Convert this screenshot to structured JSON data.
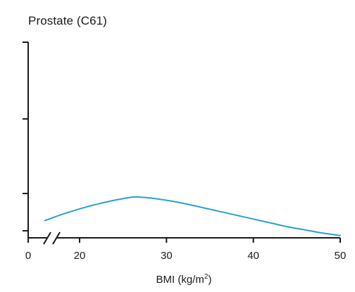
{
  "chart_data": {
    "type": "line",
    "title": "Prostate (C61)",
    "xlabel": {
      "main": "BMI (kg/m",
      "sup": "2",
      "end": ")"
    },
    "ylabel": "",
    "x_tick_labels": [
      "0",
      "20",
      "30",
      "40",
      "50"
    ],
    "x_axis_break": true,
    "y_tick_labels": [],
    "xlim": [
      15,
      50
    ],
    "grid": false,
    "legend": "none",
    "series": [
      {
        "color": "#2a9fd0",
        "x": [
          16,
          18,
          20,
          22,
          24,
          26,
          27,
          28,
          30,
          32,
          34,
          36,
          38,
          40,
          42,
          44,
          46,
          48,
          50
        ],
        "y": [
          0.22,
          0.3,
          0.37,
          0.43,
          0.48,
          0.52,
          0.52,
          0.51,
          0.48,
          0.44,
          0.39,
          0.34,
          0.29,
          0.24,
          0.19,
          0.14,
          0.1,
          0.06,
          0.03
        ]
      }
    ]
  }
}
